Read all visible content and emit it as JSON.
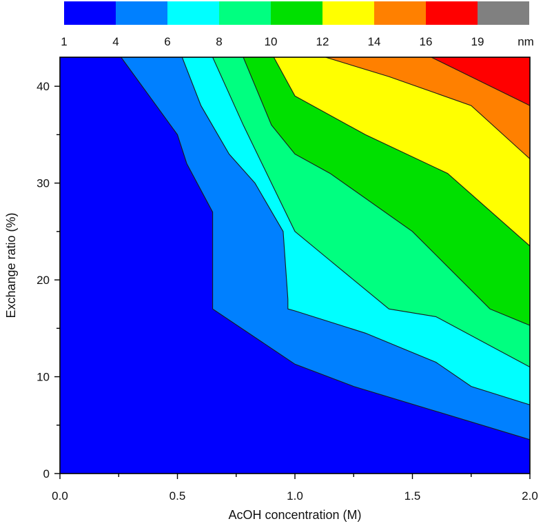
{
  "chart_data": {
    "type": "contour",
    "xlabel": "AcOH concentration (M)",
    "ylabel": "Exchange ratio (%)",
    "xlim": [
      0,
      2.0
    ],
    "ylim": [
      0,
      43
    ],
    "x_ticks": [
      "0.0",
      "0.5",
      "1.0",
      "1.5",
      "2.0"
    ],
    "y_ticks": [
      "0",
      "10",
      "20",
      "30",
      "40"
    ],
    "colorbar": {
      "unit": "nm",
      "tick_labels": [
        "1",
        "4",
        "6",
        "8",
        "10",
        "12",
        "14",
        "16",
        "19"
      ],
      "colors": [
        "#0000ff",
        "#0080ff",
        "#00ffff",
        "#00ff80",
        "#00e000",
        "#ffff00",
        "#ff8000",
        "#ff0000",
        "#808080"
      ]
    },
    "contour_lines": [
      {
        "level": 4,
        "points": [
          [
            0.26,
            43
          ],
          [
            0.5,
            35
          ],
          [
            0.54,
            32
          ],
          [
            0.65,
            27
          ],
          [
            0.65,
            17
          ],
          [
            1.0,
            11.3
          ],
          [
            1.25,
            9
          ],
          [
            2.0,
            3.5
          ]
        ]
      },
      {
        "level": 6,
        "points": [
          [
            0.52,
            43
          ],
          [
            0.6,
            38
          ],
          [
            0.72,
            33
          ],
          [
            0.83,
            30
          ],
          [
            0.95,
            25
          ],
          [
            0.97,
            18
          ],
          [
            0.97,
            17
          ],
          [
            1.0,
            16.8
          ],
          [
            1.3,
            14.5
          ],
          [
            1.6,
            11.5
          ],
          [
            1.75,
            9
          ],
          [
            2.0,
            7.1
          ]
        ]
      },
      {
        "level": 8,
        "points": [
          [
            0.65,
            43
          ],
          [
            0.78,
            36
          ],
          [
            0.9,
            30
          ],
          [
            1.0,
            25
          ],
          [
            1.15,
            22
          ],
          [
            1.4,
            17
          ],
          [
            1.6,
            16.2
          ],
          [
            2.0,
            11
          ]
        ]
      },
      {
        "level": 10,
        "points": [
          [
            0.78,
            43
          ],
          [
            0.9,
            36
          ],
          [
            1.0,
            33
          ],
          [
            1.15,
            31
          ],
          [
            1.5,
            25
          ],
          [
            1.83,
            17
          ],
          [
            2.0,
            15.3
          ]
        ]
      },
      {
        "level": 12,
        "points": [
          [
            0.91,
            43
          ],
          [
            1.0,
            39
          ],
          [
            1.3,
            35
          ],
          [
            1.65,
            31
          ],
          [
            2.0,
            23.5
          ]
        ]
      },
      {
        "level": 14,
        "points": [
          [
            1.13,
            43
          ],
          [
            1.4,
            41
          ],
          [
            1.75,
            38
          ],
          [
            2.0,
            32.5
          ]
        ]
      },
      {
        "level": 16,
        "points": [
          [
            1.58,
            43
          ],
          [
            2.0,
            38
          ]
        ]
      }
    ]
  }
}
